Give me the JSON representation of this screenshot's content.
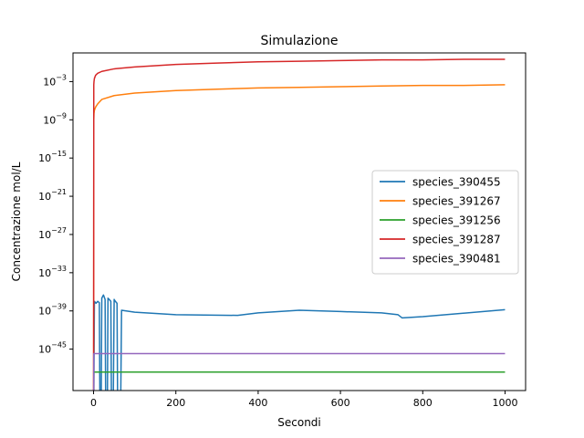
{
  "chart_data": {
    "type": "line",
    "title": "Simulazione",
    "xlabel": "Secondi",
    "ylabel": "Concentrazione mol/L",
    "xlim": [
      -50,
      1050
    ],
    "ylim_log10": [
      -51.5,
      1.5
    ],
    "yscale": "log",
    "grid": false,
    "legend_placement": "center-right",
    "x_ticks": [
      {
        "value": 0,
        "label": "0"
      },
      {
        "value": 200,
        "label": "200"
      },
      {
        "value": 400,
        "label": "400"
      },
      {
        "value": 600,
        "label": "600"
      },
      {
        "value": 800,
        "label": "800"
      },
      {
        "value": 1000,
        "label": "1000"
      }
    ],
    "y_ticks": [
      {
        "exp": -3,
        "base": "10",
        "sup": "−3"
      },
      {
        "exp": -9,
        "base": "10",
        "sup": "−9"
      },
      {
        "exp": -15,
        "base": "10",
        "sup": "−15"
      },
      {
        "exp": -21,
        "base": "10",
        "sup": "−21"
      },
      {
        "exp": -27,
        "base": "10",
        "sup": "−27"
      },
      {
        "exp": -33,
        "base": "10",
        "sup": "−33"
      },
      {
        "exp": -39,
        "base": "10",
        "sup": "−39"
      },
      {
        "exp": -45,
        "base": "10",
        "sup": "−45"
      }
    ],
    "series": [
      {
        "name": "species_390455",
        "color": "#1f77b4",
        "points_log10": [
          [
            0,
            -60
          ],
          [
            2,
            -37.5
          ],
          [
            6,
            -37.8
          ],
          [
            10,
            -37.5
          ],
          [
            14,
            -37.7
          ],
          [
            16,
            -60
          ],
          [
            18,
            -60
          ],
          [
            20,
            -37.0
          ],
          [
            24,
            -36.5
          ],
          [
            28,
            -37.2
          ],
          [
            30,
            -60
          ],
          [
            33,
            -60
          ],
          [
            35,
            -37.0
          ],
          [
            38,
            -37.2
          ],
          [
            42,
            -37.5
          ],
          [
            44,
            -60
          ],
          [
            47,
            -60
          ],
          [
            50,
            -37.2
          ],
          [
            53,
            -37.5
          ],
          [
            57,
            -37.8
          ],
          [
            59,
            -60
          ],
          [
            65,
            -60
          ],
          [
            68,
            -38.9
          ],
          [
            100,
            -39.2
          ],
          [
            200,
            -39.6
          ],
          [
            350,
            -39.7
          ],
          [
            400,
            -39.3
          ],
          [
            500,
            -38.9
          ],
          [
            600,
            -39.1
          ],
          [
            700,
            -39.3
          ],
          [
            740,
            -39.6
          ],
          [
            750,
            -40.1
          ],
          [
            800,
            -39.9
          ],
          [
            1000,
            -38.8
          ]
        ]
      },
      {
        "name": "species_391267",
        "color": "#ff7f0e",
        "points_log10": [
          [
            0,
            -60
          ],
          [
            0.5,
            -9
          ],
          [
            1,
            -8
          ],
          [
            2,
            -7.5
          ],
          [
            5,
            -7.0
          ],
          [
            10,
            -6.5
          ],
          [
            20,
            -5.8
          ],
          [
            50,
            -5.2
          ],
          [
            100,
            -4.8
          ],
          [
            200,
            -4.4
          ],
          [
            300,
            -4.2
          ],
          [
            400,
            -4.0
          ],
          [
            500,
            -3.9
          ],
          [
            600,
            -3.8
          ],
          [
            700,
            -3.7
          ],
          [
            800,
            -3.6
          ],
          [
            900,
            -3.6
          ],
          [
            1000,
            -3.5
          ]
        ]
      },
      {
        "name": "species_391256",
        "color": "#2ca02c",
        "points_log10": [
          [
            0,
            -60
          ],
          [
            0.5,
            -48.6
          ],
          [
            1000,
            -48.6
          ]
        ]
      },
      {
        "name": "species_391287",
        "color": "#d62728",
        "points_log10": [
          [
            0,
            -60
          ],
          [
            0.5,
            -3.5
          ],
          [
            1,
            -3.0
          ],
          [
            2,
            -2.5
          ],
          [
            5,
            -2.0
          ],
          [
            10,
            -1.7
          ],
          [
            20,
            -1.4
          ],
          [
            50,
            -1.0
          ],
          [
            100,
            -0.7
          ],
          [
            200,
            -0.3
          ],
          [
            300,
            -0.1
          ],
          [
            400,
            0.1
          ],
          [
            500,
            0.2
          ],
          [
            600,
            0.3
          ],
          [
            700,
            0.4
          ],
          [
            800,
            0.4
          ],
          [
            900,
            0.5
          ],
          [
            1000,
            0.5
          ]
        ]
      },
      {
        "name": "species_390481",
        "color": "#9467bd",
        "points_log10": [
          [
            0,
            -60
          ],
          [
            0.5,
            -45.7
          ],
          [
            1000,
            -45.7
          ]
        ]
      }
    ]
  }
}
